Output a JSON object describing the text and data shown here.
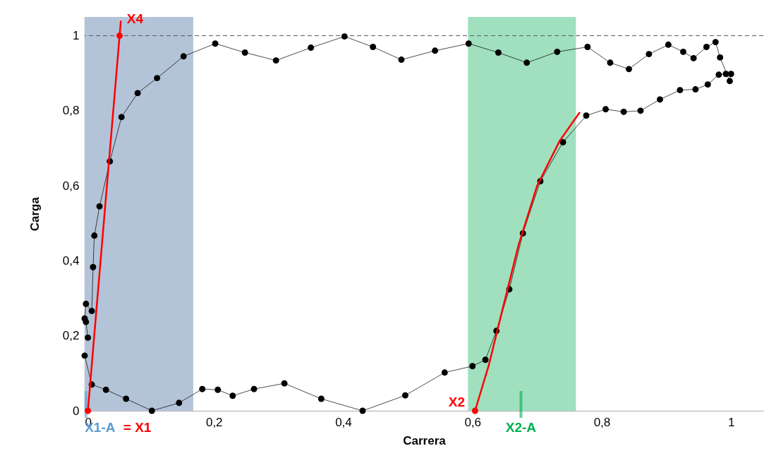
{
  "chart_data": {
    "type": "line",
    "xlabel": "Carrera",
    "ylabel": "Carga",
    "xlim": [
      0,
      1.05
    ],
    "ylim": [
      0,
      1.05
    ],
    "xticks": [
      0,
      {
        "value": 0.2,
        "label": "0,2"
      },
      {
        "value": 0.4,
        "label": "0,4"
      },
      {
        "value": 0.6,
        "label": "0,6"
      },
      {
        "value": 0.8,
        "label": "0,8"
      },
      1
    ],
    "yticks": [
      0,
      {
        "value": 0.2,
        "label": "0,2"
      },
      {
        "value": 0.4,
        "label": "0,4"
      },
      {
        "value": 0.6,
        "label": "0,6"
      },
      {
        "value": 0.8,
        "label": "0,8"
      },
      1
    ],
    "grid": false,
    "bands": [
      {
        "axis": "x",
        "from": 0,
        "to": 0.168,
        "color": "#b4c4d8"
      },
      {
        "axis": "x",
        "from": 0.593,
        "to": 0.76,
        "color": "#a0e0bf"
      }
    ],
    "ref_lines": [
      {
        "axis": "y",
        "value": 1,
        "color": "#595959",
        "line_style": "dashed"
      },
      {
        "axis": "x",
        "value": 0.002,
        "label": "X1-A",
        "color": "#5b9bd5"
      },
      {
        "axis": "x",
        "value": 0.675,
        "label": "X2-A",
        "color": "#00b050"
      }
    ],
    "series": [
      {
        "marker": "circle",
        "color": "#000000",
        "x": [
          0,
          0.011,
          0.033,
          0.064,
          0.104,
          0.146,
          0.182,
          0.206,
          0.229,
          0.262,
          0.309,
          0.366,
          0.43,
          0.496,
          0.557,
          0.6,
          0.62,
          0.637,
          0.657,
          0.678,
          0.705,
          0.74,
          0.776,
          0.806,
          0.834,
          0.86,
          0.89,
          0.921,
          0.945,
          0.964,
          0.981,
          0.992,
          1,
          0.998,
          0.983,
          0.976,
          0.962,
          0.942,
          0.926,
          0.903,
          0.873,
          0.842,
          0.813,
          0.778,
          0.731,
          0.684,
          0.64,
          0.594,
          0.542,
          0.49,
          0.446,
          0.402,
          0.35,
          0.296,
          0.248,
          0.202,
          0.153,
          0.112,
          0.082,
          0.057,
          0.039,
          0.023,
          0.015,
          0.013,
          0.011,
          0.002,
          0,
          0.002,
          0.005
        ],
        "values": [
          0.147,
          0.07,
          0.056,
          0.032,
          0,
          0.021,
          0.058,
          0.056,
          0.04,
          0.058,
          0.073,
          0.032,
          0,
          0.041,
          0.102,
          0.119,
          0.136,
          0.213,
          0.324,
          0.473,
          0.612,
          0.716,
          0.787,
          0.804,
          0.797,
          0.8,
          0.83,
          0.855,
          0.857,
          0.87,
          0.896,
          0.898,
          0.898,
          0.879,
          0.942,
          0.983,
          0.97,
          0.94,
          0.957,
          0.976,
          0.951,
          0.911,
          0.928,
          0.97,
          0.957,
          0.928,
          0.955,
          0.979,
          0.96,
          0.936,
          0.97,
          0.998,
          0.968,
          0.934,
          0.955,
          0.979,
          0.945,
          0.887,
          0.847,
          0.783,
          0.665,
          0.545,
          0.467,
          0.383,
          0.266,
          0.285,
          0.246,
          0.237,
          0.195
        ]
      },
      {
        "type": "line",
        "marker": "none",
        "color": "#ff0000",
        "x": [
          0.005,
          0.056
        ],
        "values": [
          0,
          1.04
        ]
      },
      {
        "type": "line",
        "marker": "none",
        "color": "#ff0000",
        "x": [
          0.604,
          0.625,
          0.645,
          0.671,
          0.7,
          0.735,
          0.766
        ],
        "values": [
          0,
          0.12,
          0.26,
          0.44,
          0.6,
          0.72,
          0.796
        ]
      },
      {
        "type": "scatter",
        "marker": "circle",
        "color": "#ff0000",
        "x": [
          0.005,
          0.054,
          0.604
        ],
        "values": [
          0,
          1,
          0
        ]
      }
    ],
    "annotations": [
      {
        "text": "X4",
        "x": 0.054,
        "y": 1
      },
      {
        "text": "X2",
        "x": 0.604,
        "y": 0
      },
      {
        "text": "= X1",
        "x": 0.005,
        "y": 0
      }
    ]
  }
}
